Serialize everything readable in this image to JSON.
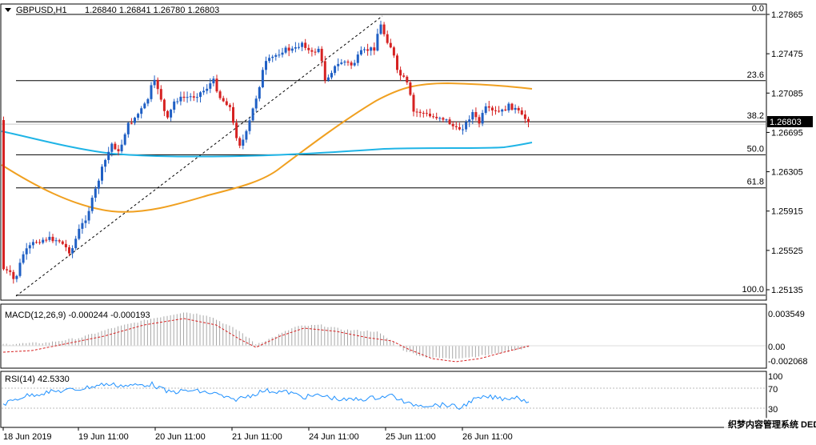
{
  "header": {
    "symbol": "GBPUSD,H1",
    "ohlc": "1.26840 1.26841 1.26780 1.26803"
  },
  "price_axis": {
    "labels": [
      "1.27865",
      "1.27475",
      "1.27085",
      "1.26695",
      "1.26305",
      "1.25915",
      "1.25525",
      "1.25135"
    ],
    "current_price": "1.26803"
  },
  "fib_levels": [
    {
      "label": "0.0",
      "price": 1.27865
    },
    {
      "label": "23.6",
      "price": 1.27208
    },
    {
      "label": "38.2",
      "price": 1.26801
    },
    {
      "label": "50.0",
      "price": 1.26473
    },
    {
      "label": "61.8",
      "price": 1.26145
    },
    {
      "label": "100.0",
      "price": 1.2508
    }
  ],
  "macd": {
    "title": "MACD(12,26,9) -0.000244 -0.000193",
    "axis_labels": [
      "0.003549",
      "0.00",
      "-0.002068"
    ]
  },
  "rsi": {
    "title": "RSI(14) 42.5330",
    "axis_labels": [
      "100",
      "70",
      "30"
    ]
  },
  "time_axis": {
    "labels": [
      "18 Jun 2019",
      "19 Jun 11:00",
      "20 Jun 11:00",
      "21 Jun 11:00",
      "24 Jun 11:00",
      "25 Jun 11:00",
      "26 Jun 11:00"
    ]
  },
  "watermark": "织梦内容管理系统 DEDECMS.COM",
  "colors": {
    "bull": "#1f5fc4",
    "bear": "#d62222",
    "ma_orange": "#f0a020",
    "ma_blue": "#1fb4e6",
    "current_price_bg": "#000000"
  }
}
